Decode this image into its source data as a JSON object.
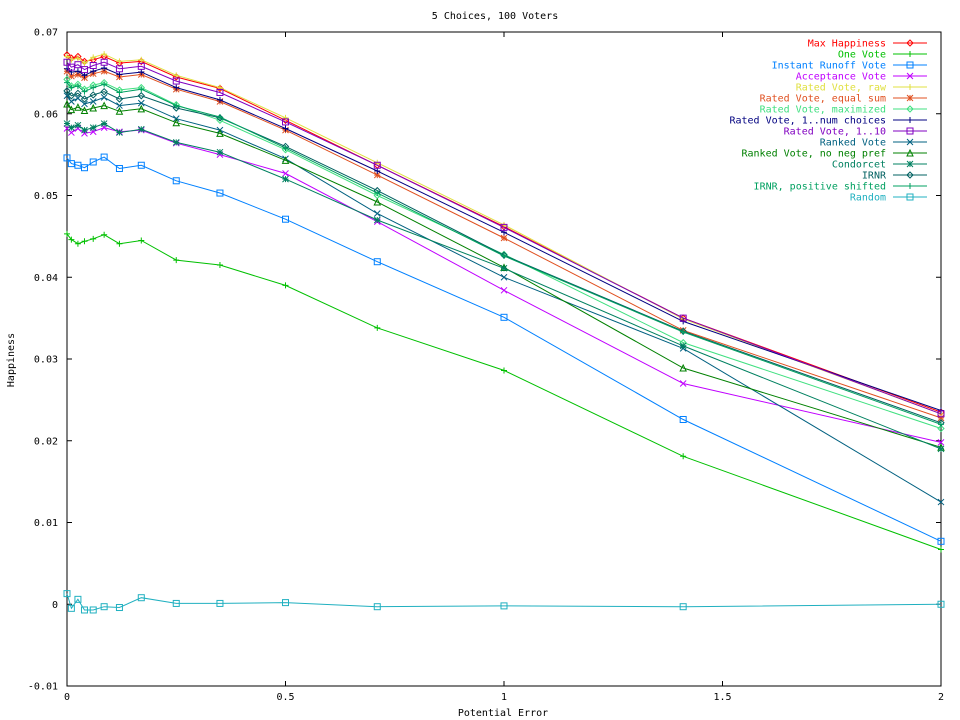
{
  "chart_data": {
    "type": "line",
    "title": "5 Choices, 100 Voters",
    "xlabel": "Potential Error",
    "ylabel": "Happiness",
    "xlim": [
      0,
      2
    ],
    "ylim": [
      -0.01,
      0.07
    ],
    "xticks": [
      "0",
      "0.5",
      "1",
      "1.5",
      "2"
    ],
    "yticks": [
      "-0.01",
      "0",
      "0.01",
      "0.02",
      "0.03",
      "0.04",
      "0.05",
      "0.06",
      "0.07"
    ],
    "grid": false,
    "legend_position": "top-right",
    "x": [
      0,
      0.01,
      0.025,
      0.04,
      0.06,
      0.085,
      0.12,
      0.17,
      0.25,
      0.35,
      0.5,
      0.71,
      1.0,
      1.41,
      2.0
    ],
    "series": [
      {
        "name": "Max Happiness",
        "color": "#ff0000",
        "marker": "diamond",
        "values": [
          0.0672,
          0.0668,
          0.067,
          0.0664,
          0.0666,
          0.067,
          0.0662,
          0.0664,
          0.0645,
          0.0631,
          0.0592,
          0.0537,
          0.0462,
          0.035,
          0.0235
        ]
      },
      {
        "name": "One Vote",
        "color": "#00c000",
        "marker": "plus",
        "values": [
          0.0453,
          0.0446,
          0.0441,
          0.0444,
          0.0447,
          0.0452,
          0.0441,
          0.0445,
          0.0421,
          0.0415,
          0.039,
          0.0338,
          0.0286,
          0.0181,
          0.0067
        ]
      },
      {
        "name": "Instant Runoff Vote",
        "color": "#0080ff",
        "marker": "square",
        "values": [
          0.0546,
          0.0539,
          0.0537,
          0.0534,
          0.0541,
          0.0547,
          0.0533,
          0.0537,
          0.0518,
          0.0503,
          0.0471,
          0.0419,
          0.0351,
          0.0226,
          0.0077
        ]
      },
      {
        "name": "Acceptance Vote",
        "color": "#c000ff",
        "marker": "x",
        "values": [
          0.0582,
          0.0577,
          0.0582,
          0.0576,
          0.0578,
          0.0583,
          0.0578,
          0.058,
          0.0564,
          0.055,
          0.0527,
          0.0468,
          0.0384,
          0.027,
          0.0198
        ]
      },
      {
        "name": "Rated Vote, raw",
        "color": "#e0e040",
        "marker": "plus",
        "values": [
          0.067,
          0.0666,
          0.0668,
          0.0662,
          0.0669,
          0.0673,
          0.0664,
          0.0666,
          0.0647,
          0.0632,
          0.0595,
          0.054,
          0.0464,
          0.0349,
          0.0233
        ]
      },
      {
        "name": "Rated Vote, equal sum",
        "color": "#e05020",
        "marker": "star",
        "values": [
          0.0652,
          0.0646,
          0.0648,
          0.0644,
          0.0649,
          0.0652,
          0.0645,
          0.0648,
          0.063,
          0.0615,
          0.058,
          0.0525,
          0.0448,
          0.0335,
          0.0228
        ]
      },
      {
        "name": "Rated Vote, maximized",
        "color": "#40e080",
        "marker": "diamond",
        "values": [
          0.0642,
          0.0634,
          0.0636,
          0.063,
          0.0635,
          0.0638,
          0.0629,
          0.0632,
          0.0611,
          0.0592,
          0.0556,
          0.05,
          0.0428,
          0.032,
          0.0215
        ]
      },
      {
        "name": "Rated Vote, 1..num choices",
        "color": "#000080",
        "marker": "plus",
        "values": [
          0.0655,
          0.0651,
          0.0652,
          0.0647,
          0.0652,
          0.0656,
          0.0648,
          0.0651,
          0.0632,
          0.0617,
          0.0582,
          0.053,
          0.0455,
          0.0346,
          0.0237
        ]
      },
      {
        "name": "Rated Vote, 1..10",
        "color": "#8000c0",
        "marker": "square",
        "values": [
          0.0663,
          0.0657,
          0.066,
          0.0654,
          0.0659,
          0.0663,
          0.0655,
          0.0658,
          0.064,
          0.0626,
          0.059,
          0.0537,
          0.0461,
          0.035,
          0.0233
        ]
      },
      {
        "name": "Ranked Vote",
        "color": "#006080",
        "marker": "x",
        "values": [
          0.0622,
          0.0615,
          0.0619,
          0.0612,
          0.0615,
          0.062,
          0.061,
          0.0613,
          0.0594,
          0.058,
          0.0545,
          0.0478,
          0.04,
          0.0313,
          0.0125
        ]
      },
      {
        "name": "Ranked Vote, no neg pref",
        "color": "#008000",
        "marker": "triangle",
        "values": [
          0.0612,
          0.0605,
          0.0608,
          0.0604,
          0.0607,
          0.061,
          0.0603,
          0.0606,
          0.0589,
          0.0576,
          0.0543,
          0.0492,
          0.0412,
          0.0289,
          0.0192
        ]
      },
      {
        "name": "Condorcet",
        "color": "#008060",
        "marker": "star",
        "values": [
          0.0588,
          0.0583,
          0.0586,
          0.058,
          0.0583,
          0.0588,
          0.0577,
          0.0581,
          0.0565,
          0.0553,
          0.052,
          0.047,
          0.0411,
          0.0316,
          0.019
        ]
      },
      {
        "name": "IRNR",
        "color": "#006060",
        "marker": "diamond",
        "values": [
          0.0628,
          0.0622,
          0.0625,
          0.0618,
          0.0623,
          0.0627,
          0.0618,
          0.0622,
          0.0607,
          0.0595,
          0.056,
          0.0506,
          0.0427,
          0.0334,
          0.0222
        ]
      },
      {
        "name": "IRNR, positive shifted",
        "color": "#00a060",
        "marker": "plus",
        "values": [
          0.0638,
          0.0632,
          0.0634,
          0.0627,
          0.0632,
          0.0636,
          0.0626,
          0.063,
          0.061,
          0.0596,
          0.0558,
          0.0503,
          0.0426,
          0.0333,
          0.022
        ]
      },
      {
        "name": "Random",
        "color": "#20b0c0",
        "marker": "square",
        "values": [
          0.0013,
          -0.0005,
          0.0006,
          -0.0007,
          -0.0007,
          -0.0003,
          -0.0004,
          0.0008,
          0.0001,
          0.0001,
          0.0002,
          -0.0003,
          -0.0002,
          -0.0003,
          0.0
        ]
      }
    ]
  }
}
